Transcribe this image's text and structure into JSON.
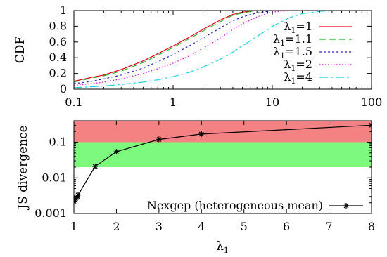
{
  "chart_data": [
    {
      "type": "line",
      "title": "",
      "xlabel": "",
      "ylabel": "CDF",
      "xscale": "log",
      "xlim": [
        0.1,
        100
      ],
      "ylim": [
        0,
        1
      ],
      "xticks": [
        0.1,
        1,
        10,
        100
      ],
      "xtick_labels": [
        "0.1",
        "1",
        "10",
        "100"
      ],
      "yticks": [
        0,
        0.2,
        0.4,
        0.6,
        0.8,
        1
      ],
      "ytick_labels": [
        "0",
        "0.2",
        "0.4",
        "0.6",
        "0.8",
        "1"
      ],
      "grid": false,
      "legend_position": "bottom-right",
      "x": [
        0.1,
        0.15,
        0.2,
        0.3,
        0.5,
        0.7,
        1,
        1.5,
        2,
        3,
        4,
        5,
        7,
        10,
        15,
        20,
        30,
        50,
        100
      ],
      "series": [
        {
          "name": "λ₁=1",
          "legend": {
            "base": "λ",
            "sub": "1",
            "rest": "=1"
          },
          "color": "#e8001f",
          "dash": "",
          "values": [
            0.1,
            0.15,
            0.18,
            0.25,
            0.36,
            0.45,
            0.55,
            0.67,
            0.76,
            0.88,
            0.95,
            0.98,
            1,
            1,
            1,
            1,
            1,
            1,
            1
          ]
        },
        {
          "name": "λ₁=1.1",
          "legend": {
            "base": "λ",
            "sub": "1",
            "rest": "=1.1"
          },
          "color": "#22b522",
          "dash": "9,5",
          "values": [
            0.09,
            0.14,
            0.17,
            0.23,
            0.34,
            0.43,
            0.53,
            0.65,
            0.74,
            0.86,
            0.94,
            0.97,
            1,
            1,
            1,
            1,
            1,
            1,
            1
          ]
        },
        {
          "name": "λ₁=1.5",
          "legend": {
            "base": "λ",
            "sub": "1",
            "rest": "=1.5"
          },
          "color": "#2323c8",
          "dash": "3,3",
          "values": [
            0.07,
            0.1,
            0.13,
            0.18,
            0.27,
            0.35,
            0.44,
            0.56,
            0.65,
            0.78,
            0.87,
            0.92,
            0.97,
            1,
            1,
            1,
            1,
            1,
            1
          ]
        },
        {
          "name": "λ₁=2",
          "legend": {
            "base": "λ",
            "sub": "1",
            "rest": "=2"
          },
          "color": "#e000e0",
          "dash": "1.5,2.5",
          "values": [
            0.05,
            0.07,
            0.09,
            0.13,
            0.2,
            0.26,
            0.33,
            0.43,
            0.52,
            0.65,
            0.76,
            0.83,
            0.92,
            0.98,
            1,
            1,
            1,
            1,
            1
          ]
        },
        {
          "name": "λ₁=4",
          "legend": {
            "base": "λ",
            "sub": "1",
            "rest": "=4"
          },
          "color": "#19d2e8",
          "dash": "12,4,3,4",
          "values": [
            0.02,
            0.03,
            0.04,
            0.06,
            0.09,
            0.12,
            0.16,
            0.22,
            0.28,
            0.38,
            0.47,
            0.55,
            0.67,
            0.8,
            0.91,
            0.96,
            0.99,
            1,
            1
          ]
        }
      ]
    },
    {
      "type": "line",
      "title": "",
      "xlabel": "λ₁",
      "xlabel_parts": {
        "base": "λ",
        "sub": "1"
      },
      "ylabel": "JS divergence",
      "yscale": "log",
      "xlim": [
        1,
        8
      ],
      "ylim": [
        0.001,
        0.4
      ],
      "xticks": [
        1,
        2,
        3,
        4,
        5,
        6,
        7,
        8
      ],
      "xtick_labels": [
        "1",
        "2",
        "3",
        "4",
        "5",
        "6",
        "7",
        "8"
      ],
      "yticks": [
        0.001,
        0.01,
        0.1
      ],
      "ytick_labels": [
        "0.001",
        "0.01",
        "0.1"
      ],
      "grid": false,
      "legend_position": "bottom-right",
      "bands": [
        {
          "from": 0.1,
          "to": 0.4,
          "color": "#f58282"
        },
        {
          "from": 0.02,
          "to": 0.1,
          "color": "#7dfa7d"
        }
      ],
      "series": [
        {
          "name": "Nexgep (heterogeneous mean)",
          "color": "#000000",
          "marker": "star",
          "x": [
            1,
            1.02,
            1.04,
            1.06,
            1.08,
            1.1,
            1.5,
            2,
            3,
            4,
            8
          ],
          "values": [
            0.0022,
            0.0024,
            0.0026,
            0.0028,
            0.003,
            0.0033,
            0.021,
            0.054,
            0.12,
            0.17,
            0.3
          ]
        }
      ]
    }
  ]
}
